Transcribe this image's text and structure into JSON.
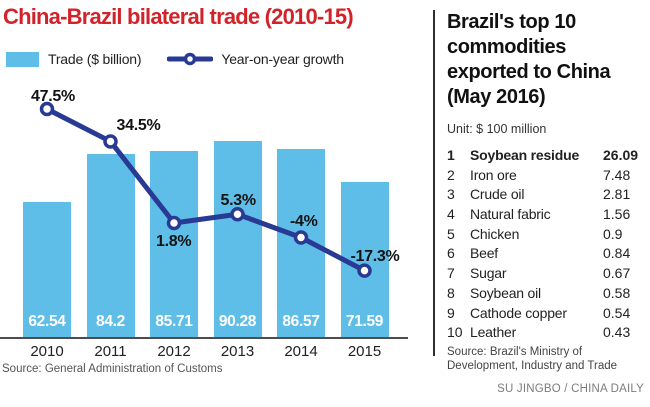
{
  "left_panel": {
    "title": "China-Brazil bilateral trade (2010-15)",
    "legend_trade": "Trade ($ billion)",
    "legend_growth": "Year-on-year growth",
    "source": "Source: General Administration of Customs"
  },
  "chart_data": {
    "type": "bar",
    "title": "China-Brazil bilateral trade (2010-15)",
    "categories": [
      "2010",
      "2011",
      "2012",
      "2013",
      "2014",
      "2015"
    ],
    "series": [
      {
        "name": "Trade ($ billion)",
        "type": "bar",
        "values": [
          62.54,
          84.2,
          85.71,
          90.28,
          86.57,
          71.59
        ],
        "value_labels": [
          "62.54",
          "84.2",
          "85.71",
          "90.28",
          "86.57",
          "71.59"
        ],
        "color": "#5fbee8"
      },
      {
        "name": "Year-on-year growth",
        "type": "line",
        "values": [
          47.5,
          34.5,
          1.8,
          5.3,
          -4,
          -17.3
        ],
        "value_labels": [
          "47.5%",
          "34.5%",
          "1.8%",
          "5.3%",
          "-4%",
          "-17.3%"
        ],
        "color": "#293a94"
      }
    ],
    "legend_position": "top",
    "grid": false,
    "value_labels_inside_bars": true,
    "xlabel": "",
    "ylabel": ""
  },
  "right_panel": {
    "title": "Brazil's top 10 commodities exported to China (May 2016)",
    "unit": "Unit: $ 100 million",
    "rows": [
      {
        "rank": "1",
        "name": "Soybean residue",
        "value": "26.09",
        "bold": true
      },
      {
        "rank": "2",
        "name": "Iron ore",
        "value": "7.48",
        "bold": false
      },
      {
        "rank": "3",
        "name": "Crude oil",
        "value": "2.81",
        "bold": false
      },
      {
        "rank": "4",
        "name": "Natural fabric",
        "value": "1.56",
        "bold": false
      },
      {
        "rank": "5",
        "name": "Chicken",
        "value": "0.9",
        "bold": false
      },
      {
        "rank": "6",
        "name": "Beef",
        "value": "0.84",
        "bold": false
      },
      {
        "rank": "7",
        "name": "Sugar",
        "value": "0.67",
        "bold": false
      },
      {
        "rank": "8",
        "name": "Soybean oil",
        "value": "0.58",
        "bold": false
      },
      {
        "rank": "9",
        "name": "Cathode copper",
        "value": "0.54",
        "bold": false
      },
      {
        "rank": "10",
        "name": "Leather",
        "value": "0.43",
        "bold": false
      }
    ],
    "source": "Source: Brazil's Ministry of Development, Industry and Trade"
  },
  "credit": "SU JINGBO / CHINA DAILY",
  "colors": {
    "title_red": "#d2232a",
    "bar_blue": "#5fbee8",
    "line_navy": "#293a94",
    "axis_gray": "#4d4d4d"
  }
}
